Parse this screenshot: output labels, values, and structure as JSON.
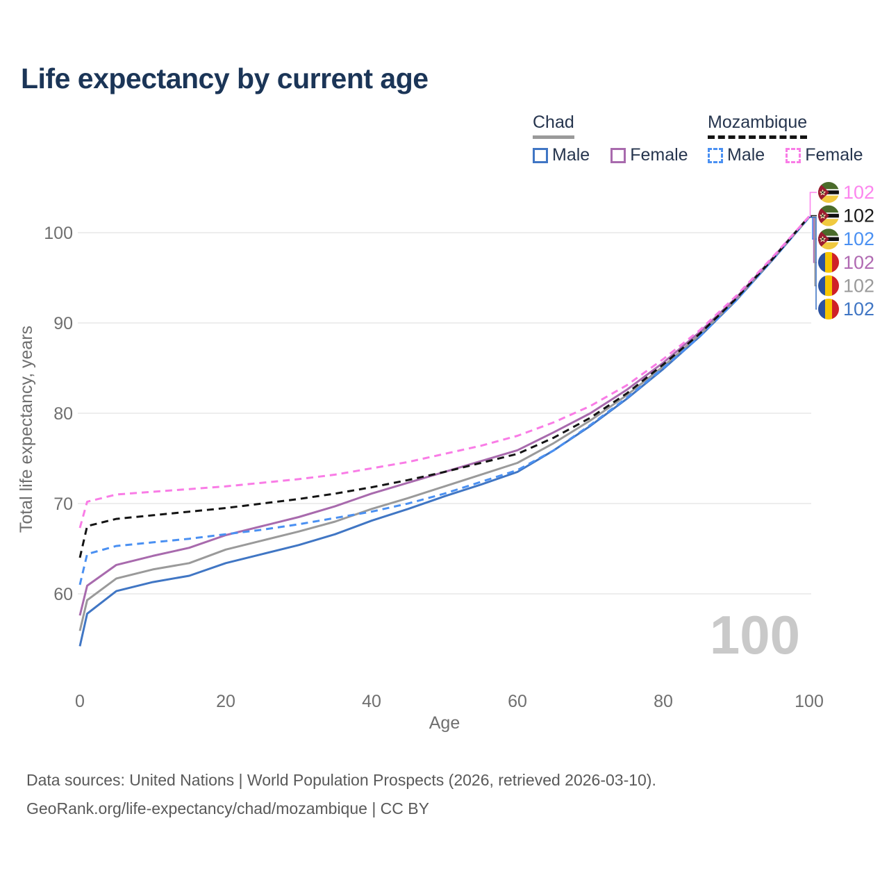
{
  "page": {
    "title": "Life expectancy by current age",
    "age_indicator": "100",
    "footer_line1": "Data sources: United Nations | World Population Prospects (2026, retrieved 2026-03-10).",
    "footer_line2": "GeoRank.org/life-expectancy/chad/mozambique | CC BY"
  },
  "legend": {
    "groups": [
      {
        "label": "Chad",
        "underline_style": "solid",
        "underline_color": "#9a9a9a",
        "items": [
          {
            "label": "Male",
            "color": "#4076c4",
            "dash": false
          },
          {
            "label": "Female",
            "color": "#a86aad",
            "dash": false
          }
        ]
      },
      {
        "label": "Mozambique",
        "underline_style": "dashed",
        "underline_color": "#141414",
        "items": [
          {
            "label": "Male",
            "color": "#4a90f2",
            "dash": true
          },
          {
            "label": "Female",
            "color": "#f97ce6",
            "dash": true
          }
        ]
      }
    ]
  },
  "chart_data": {
    "type": "line",
    "title": "Life expectancy by current age",
    "xlabel": "Age",
    "ylabel": "Total life expectancy, years",
    "grid": "horizontal",
    "xticks": [
      0,
      20,
      40,
      60,
      80,
      100
    ],
    "yticks": [
      60,
      70,
      80,
      90,
      100
    ],
    "xlim": [
      0,
      100
    ],
    "ylim": [
      53,
      103
    ],
    "x": [
      0,
      1,
      5,
      10,
      15,
      20,
      25,
      30,
      35,
      40,
      45,
      50,
      55,
      60,
      65,
      70,
      75,
      80,
      85,
      90,
      95,
      100
    ],
    "series": [
      {
        "name": "Chad Male",
        "country": "Chad",
        "sex": "Male",
        "color": "#4076c4",
        "dash": false,
        "values": [
          54.2,
          57.8,
          60.3,
          61.3,
          62.0,
          63.4,
          64.4,
          65.4,
          66.6,
          68.1,
          69.4,
          70.8,
          72.1,
          73.5,
          75.9,
          78.6,
          81.6,
          84.9,
          88.5,
          92.5,
          97.0,
          101.7
        ]
      },
      {
        "name": "Chad",
        "country": "Chad",
        "sex": "Both",
        "color": "#9a9a9a",
        "dash": false,
        "values": [
          55.9,
          59.3,
          61.7,
          62.7,
          63.4,
          64.9,
          65.9,
          66.9,
          68.0,
          69.4,
          70.6,
          71.9,
          73.2,
          74.5,
          76.7,
          79.2,
          82.0,
          85.2,
          88.7,
          92.6,
          97.1,
          101.7
        ]
      },
      {
        "name": "Chad Female",
        "country": "Chad",
        "sex": "Female",
        "color": "#a86aad",
        "dash": false,
        "values": [
          57.6,
          60.9,
          63.2,
          64.2,
          65.1,
          66.5,
          67.5,
          68.5,
          69.7,
          71.1,
          72.3,
          73.5,
          74.7,
          75.9,
          77.9,
          80.0,
          82.6,
          85.6,
          89.0,
          92.8,
          97.2,
          101.8
        ]
      },
      {
        "name": "Mozambique Male",
        "country": "Mozambique",
        "sex": "Male",
        "color": "#4a90f2",
        "dash": true,
        "values": [
          61.0,
          64.4,
          65.3,
          65.7,
          66.1,
          66.6,
          67.1,
          67.7,
          68.4,
          69.1,
          70.0,
          71.1,
          72.4,
          73.7,
          75.9,
          78.7,
          81.7,
          85.0,
          88.5,
          92.5,
          97.0,
          101.7
        ]
      },
      {
        "name": "Mozambique",
        "country": "Mozambique",
        "sex": "Both",
        "color": "#141414",
        "dash": true,
        "values": [
          64.0,
          67.5,
          68.3,
          68.7,
          69.1,
          69.5,
          70.0,
          70.5,
          71.1,
          71.8,
          72.6,
          73.5,
          74.5,
          75.5,
          77.3,
          79.5,
          82.2,
          85.4,
          88.8,
          92.7,
          97.1,
          101.8
        ]
      },
      {
        "name": "Mozambique Female",
        "country": "Mozambique",
        "sex": "Female",
        "color": "#f97ce6",
        "dash": true,
        "values": [
          67.3,
          70.2,
          71.0,
          71.3,
          71.6,
          71.9,
          72.3,
          72.7,
          73.2,
          73.9,
          74.6,
          75.5,
          76.4,
          77.5,
          79.0,
          80.8,
          83.1,
          86.0,
          89.2,
          93.0,
          97.3,
          101.8
        ]
      }
    ],
    "end_labels": [
      {
        "series": "Mozambique Female",
        "value": "102",
        "color": "#fc85ee",
        "flag": "mozambique"
      },
      {
        "series": "Mozambique",
        "value": "102",
        "color": "#1a1a1a",
        "flag": "mozambique"
      },
      {
        "series": "Mozambique Male",
        "value": "102",
        "color": "#4a90f2",
        "flag": "mozambique"
      },
      {
        "series": "Chad Female",
        "value": "102",
        "color": "#b06ab2",
        "flag": "chad"
      },
      {
        "series": "Chad",
        "value": "102",
        "color": "#9a9a9a",
        "flag": "chad"
      },
      {
        "series": "Chad Male",
        "value": "102",
        "color": "#4076c4",
        "flag": "chad"
      }
    ]
  }
}
